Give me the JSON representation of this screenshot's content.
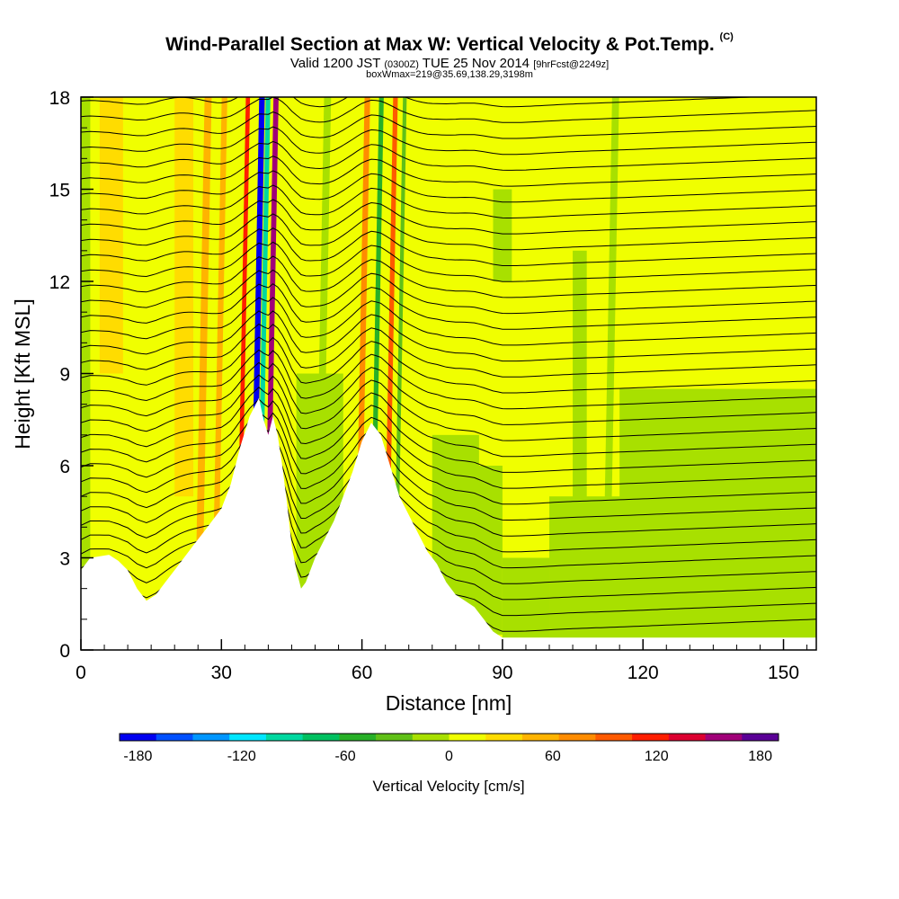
{
  "title": "Wind-Parallel Section at Max W: Vertical Velocity & Pot.Temp.",
  "copyright": "(C)",
  "subtitle_main": "Valid 1200 JST",
  "subtitle_zone": "(0300Z)",
  "subtitle_date": "TUE 25 Nov 2014",
  "subtitle_fcst": "[9hrFcst@2249z]",
  "subtitle2": "boxWmax=219@35.69,138.29,3198m",
  "chart_data": {
    "type": "heatmap",
    "xlabel": "Distance [nm]",
    "ylabel": "Height [Kft MSL]",
    "xlim": [
      0,
      157
    ],
    "ylim": [
      0,
      18
    ],
    "x_ticks": [
      0,
      30,
      60,
      90,
      120,
      150
    ],
    "y_ticks": [
      0,
      3,
      6,
      9,
      12,
      15,
      18
    ],
    "colorbar": {
      "title": "Vertical Velocity [cm/s]",
      "ticks": [
        -180,
        -120,
        -60,
        0,
        60,
        120,
        180
      ],
      "colors": [
        "#0000f0",
        "#0050ff",
        "#0096ff",
        "#00e6ff",
        "#00d8a0",
        "#00c060",
        "#28b028",
        "#60c018",
        "#a8e000",
        "#f0ff00",
        "#ffdc00",
        "#ffb400",
        "#ff8c00",
        "#ff5a00",
        "#ff1e00",
        "#dc0030",
        "#a00078",
        "#5a0096"
      ]
    },
    "terrain": [
      [
        0,
        2.6
      ],
      [
        2,
        3.0
      ],
      [
        6,
        3.1
      ],
      [
        8,
        2.9
      ],
      [
        10,
        2.6
      ],
      [
        12,
        2.0
      ],
      [
        14,
        1.6
      ],
      [
        16,
        1.8
      ],
      [
        18,
        2.2
      ],
      [
        20,
        2.6
      ],
      [
        22,
        3.0
      ],
      [
        24,
        3.4
      ],
      [
        26,
        3.8
      ],
      [
        28,
        4.2
      ],
      [
        30,
        4.6
      ],
      [
        32,
        5.4
      ],
      [
        34,
        6.6
      ],
      [
        36,
        7.6
      ],
      [
        38,
        8.2
      ],
      [
        39,
        7.5
      ],
      [
        40,
        7.0
      ],
      [
        41,
        7.6
      ],
      [
        42,
        7.0
      ],
      [
        43,
        6.0
      ],
      [
        44,
        4.8
      ],
      [
        45,
        3.4
      ],
      [
        46,
        2.6
      ],
      [
        47,
        2.0
      ],
      [
        48,
        2.2
      ],
      [
        50,
        3.0
      ],
      [
        52,
        3.6
      ],
      [
        54,
        4.2
      ],
      [
        56,
        5.0
      ],
      [
        58,
        5.8
      ],
      [
        60,
        6.8
      ],
      [
        62,
        7.4
      ],
      [
        64,
        7.0
      ],
      [
        66,
        6.0
      ],
      [
        68,
        5.0
      ],
      [
        70,
        4.4
      ],
      [
        72,
        3.8
      ],
      [
        74,
        3.2
      ],
      [
        76,
        2.8
      ],
      [
        78,
        2.2
      ],
      [
        80,
        1.8
      ],
      [
        82,
        1.6
      ],
      [
        84,
        1.4
      ],
      [
        86,
        1.0
      ],
      [
        88,
        0.6
      ],
      [
        90,
        0.4
      ],
      [
        157,
        0.4
      ]
    ],
    "contour_levels": 34,
    "velocity_bands": [
      {
        "x": 36.5,
        "w": 1.2,
        "value": -180
      },
      {
        "x": 37.8,
        "w": 1.0,
        "value": -100
      },
      {
        "x": 39.5,
        "w": 1.1,
        "value": 140
      },
      {
        "x": 33.5,
        "w": 0.9,
        "value": 110
      },
      {
        "x": 28.5,
        "w": 1.2,
        "value": 50
      },
      {
        "x": 25.0,
        "w": 1.5,
        "value": 40
      },
      {
        "x": 62.0,
        "w": 1.0,
        "value": -60
      },
      {
        "x": 65.0,
        "w": 1.0,
        "value": 80
      },
      {
        "x": 67.0,
        "w": 0.8,
        "value": -40
      },
      {
        "x": 59.0,
        "w": 1.2,
        "value": 60
      },
      {
        "x": 50.5,
        "w": 1.5,
        "value": -20
      },
      {
        "x": 112.0,
        "w": 1.5,
        "value": -20
      }
    ]
  }
}
